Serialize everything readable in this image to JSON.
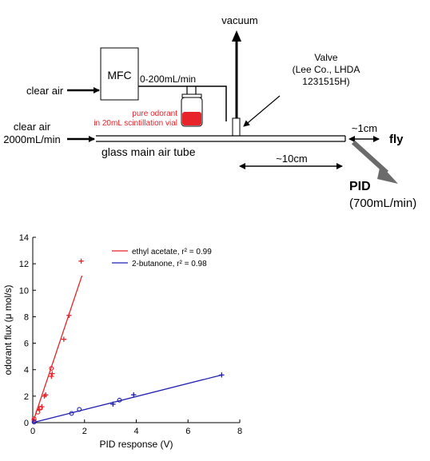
{
  "diagram": {
    "vacuum_label": "vacuum",
    "mfc_label": "MFC",
    "flow_range_label": "0-200mL/min",
    "clear_air_top_label": "clear air",
    "clear_air_main_label_line1": "clear air",
    "clear_air_main_label_line2": "2000mL/min",
    "vial_label_line1": "pure odorant",
    "vial_label_line2": "in 20mL scintillation vial",
    "valve_label_line1": "Valve",
    "valve_label_line2": "(Lee Co., LHDA",
    "valve_label_line3": "1231515H)",
    "tube_label": "glass main air tube",
    "distance_10cm_label": "~10cm",
    "distance_1cm_label": "~1cm",
    "fly_label": "fly",
    "pid_label": "PID",
    "pid_flow_label": "(700mL/min)",
    "colors": {
      "odorant": "#e8232a",
      "line": "#000000",
      "pid_arrow": "#6b6b6b"
    }
  },
  "chart_data": {
    "type": "scatter",
    "xlabel": "PID response (V)",
    "ylabel": "odorant flux (μ mol/s)",
    "xlim": [
      0,
      8
    ],
    "ylim": [
      0,
      14
    ],
    "xticks": [
      "0",
      "2",
      "4",
      "6",
      "8"
    ],
    "yticks": [
      "0",
      "2",
      "4",
      "6",
      "8",
      "10",
      "12",
      "14"
    ],
    "series": [
      {
        "name": "ethyl acetate, r² = 0.99",
        "color": "#e8232a",
        "fit": {
          "x": [
            0,
            1.9
          ],
          "y": [
            0,
            11.1
          ]
        },
        "points_plus": [
          [
            0.05,
            0.2
          ],
          [
            0.25,
            1.0
          ],
          [
            0.35,
            1.2
          ],
          [
            0.45,
            2.0
          ],
          [
            0.5,
            2.1
          ],
          [
            0.72,
            3.5
          ],
          [
            0.75,
            3.7
          ],
          [
            1.2,
            6.3
          ],
          [
            1.4,
            8.1
          ],
          [
            1.87,
            12.2
          ]
        ],
        "points_circle": [
          [
            0.05,
            0.3
          ],
          [
            0.2,
            0.8
          ],
          [
            0.3,
            1.1
          ],
          [
            0.72,
            4.1
          ]
        ]
      },
      {
        "name": "2-butanone, r² = 0.98",
        "color": "#1f1fb4",
        "fit": {
          "x": [
            0,
            7.3
          ],
          "y": [
            0,
            3.6
          ]
        },
        "points_plus": [
          [
            3.1,
            1.4
          ],
          [
            3.9,
            2.1
          ],
          [
            7.3,
            3.6
          ]
        ],
        "points_circle": [
          [
            0.05,
            0.05
          ],
          [
            1.5,
            0.7
          ],
          [
            1.8,
            1.0
          ],
          [
            3.35,
            1.7
          ]
        ]
      }
    ]
  }
}
